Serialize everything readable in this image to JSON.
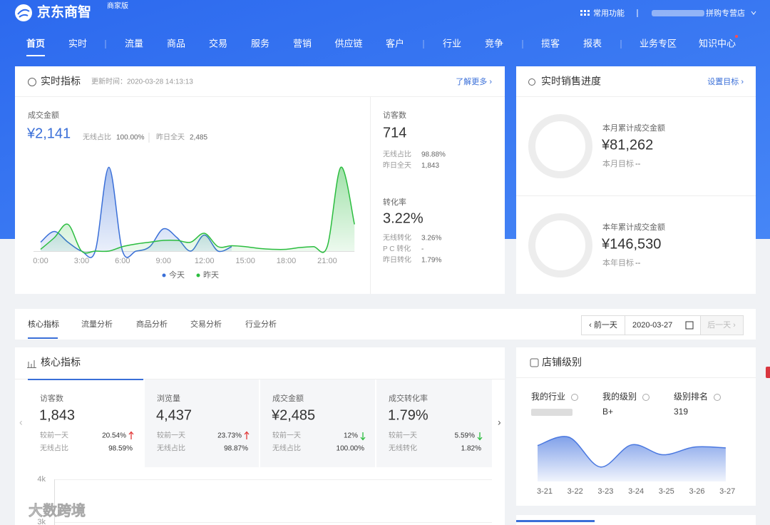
{
  "header": {
    "brand": "京东商智",
    "edition": "商家版",
    "tools": "常用功能",
    "shop": "拼购专营店"
  },
  "nav": [
    "首页",
    "实时",
    "流量",
    "商品",
    "交易",
    "服务",
    "营销",
    "供应链",
    "客户",
    "行业",
    "竞争",
    "揽客",
    "报表",
    "业务专区",
    "知识中心"
  ],
  "realtime": {
    "title": "实时指标",
    "updated": "更新时间：2020-03-28 14:13:13",
    "more": "了解更多 ›",
    "sales_label": "成交金额",
    "sales": "¥2,141",
    "wireless_label": "无线占比",
    "wireless": "100.00%",
    "yesterday_label": "昨日全天",
    "yesterday": "2,485",
    "chart_data": {
      "type": "line",
      "x": [
        0,
        1,
        2,
        3,
        4,
        5,
        6,
        7,
        8,
        9,
        10,
        11,
        12,
        13,
        14,
        15,
        16,
        17,
        18,
        19,
        20,
        21,
        22,
        23
      ],
      "xlim": [
        0,
        23
      ],
      "xticks": [
        {
          "value": 0,
          "label": "0:00"
        },
        {
          "value": 3,
          "label": "3:00"
        },
        {
          "value": 6,
          "label": "6:00"
        },
        {
          "value": 9,
          "label": "9:00"
        },
        {
          "value": 12,
          "label": "12:00"
        },
        {
          "value": 15,
          "label": "15:00"
        },
        {
          "value": 18,
          "label": "18:00"
        },
        {
          "value": 21,
          "label": "21:00"
        }
      ],
      "ylim": [
        0,
        100
      ],
      "series": [
        {
          "name": "今天",
          "color": "#3a6fd8",
          "values": [
            10,
            22,
            10,
            0,
            0,
            94,
            0,
            0,
            5,
            25,
            15,
            0,
            18,
            0,
            5,
            null,
            null,
            null,
            null,
            null,
            null,
            null,
            null,
            null
          ]
        },
        {
          "name": "昨天",
          "color": "#2bbd3f",
          "values": [
            2,
            15,
            30,
            0,
            0,
            0,
            5,
            8,
            10,
            12,
            12,
            10,
            20,
            5,
            6,
            5,
            3,
            2,
            2,
            4,
            5,
            5,
            94,
            30
          ]
        }
      ]
    },
    "visitors": {
      "label": "访客数",
      "value": "714",
      "rows": [
        {
          "label": "无线占比",
          "value": "98.88%"
        },
        {
          "label": "昨日全天",
          "value": "1,843"
        }
      ]
    },
    "conversion": {
      "label": "转化率",
      "value": "3.22%",
      "rows": [
        {
          "label": "无线转化",
          "value": "3.26%"
        },
        {
          "label": "P C 转化",
          "value": "-"
        },
        {
          "label": "昨日转化",
          "value": "1.79%"
        }
      ]
    }
  },
  "progress": {
    "title": "实时销售进度",
    "action": "设置目标 ›",
    "items": [
      {
        "label": "本月累计成交金额",
        "value": "¥81,262",
        "target_label": "本月目标",
        "target": "--"
      },
      {
        "label": "本年累计成交金额",
        "value": "¥146,530",
        "target_label": "本年目标",
        "target": "--"
      }
    ]
  },
  "tabs": [
    "核心指标",
    "流量分析",
    "商品分析",
    "交易分析",
    "行业分析"
  ],
  "date_nav": {
    "prev": "‹ 前一天",
    "date": "2020-03-27",
    "next": "后一天 ›"
  },
  "core": {
    "title": "核心指标",
    "cards": [
      {
        "label": "访客数",
        "value": "1,843",
        "compare_label": "较前一天",
        "compare": "20.54%",
        "trend": "up",
        "ratio_label": "无线占比",
        "ratio": "98.59%"
      },
      {
        "label": "浏览量",
        "value": "4,437",
        "compare_label": "较前一天",
        "compare": "23.73%",
        "trend": "up",
        "ratio_label": "无线占比",
        "ratio": "98.87%"
      },
      {
        "label": "成交金额",
        "value": "¥2,485",
        "compare_label": "较前一天",
        "compare": "12%",
        "trend": "down",
        "ratio_label": "无线占比",
        "ratio": "100.00%"
      },
      {
        "label": "成交转化率",
        "value": "1.79%",
        "compare_label": "较前一天",
        "compare": "5.59%",
        "trend": "down",
        "ratio_label": "无线转化",
        "ratio": "1.82%"
      }
    ],
    "chart_data": {
      "type": "line",
      "ylim": [
        0,
        4000
      ],
      "yticks": [
        {
          "value": 4000,
          "label": "4k"
        },
        {
          "value": 3000,
          "label": "3k"
        }
      ],
      "grid": true
    }
  },
  "store": {
    "title": "店铺级别",
    "fields": [
      {
        "label": "我的行业"
      },
      {
        "label": "我的级别",
        "value": "B+"
      },
      {
        "label": "级别排名",
        "value": "319"
      }
    ],
    "chart_data": {
      "type": "area",
      "categories": [
        "3-21",
        "3-22",
        "3-23",
        "3-24",
        "3-25",
        "3-26",
        "3-27"
      ],
      "values": [
        47,
        58,
        19,
        48,
        35,
        45,
        44
      ],
      "ylim": [
        0,
        70
      ],
      "color": "#4a78e0"
    }
  },
  "watermark": "大数跨境"
}
